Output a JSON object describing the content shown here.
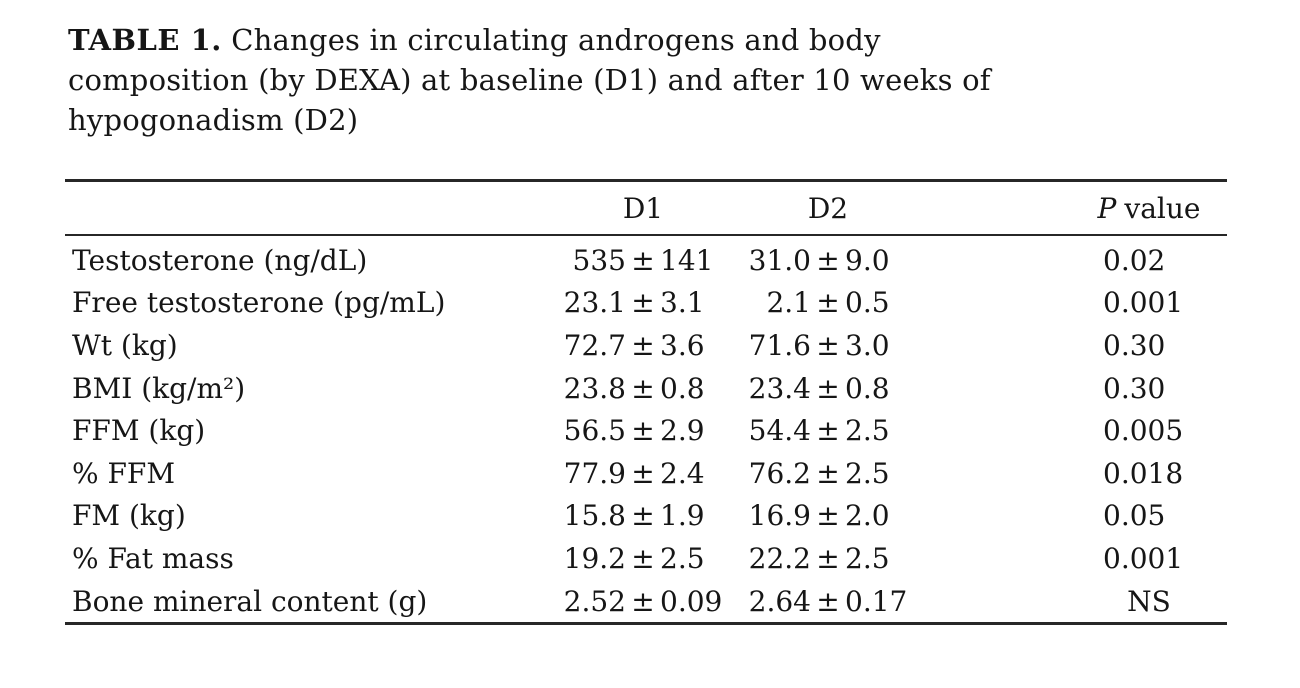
{
  "caption": {
    "label": "TABLE 1.",
    "line1_rest": " Changes in circulating androgens and body",
    "line2": "composition (by DEXA) at baseline (D1) and after 10 weeks of",
    "line3": "hypogonadism (D2)"
  },
  "table": {
    "pm_symbol": "±",
    "header": {
      "d1": "D1",
      "d2": "D2",
      "p_italic": "P",
      "p_rest": "value"
    },
    "rows": [
      {
        "label": "Testosterone (ng/dL)",
        "d1_mean": "535",
        "d1_sd": "141",
        "d2_mean": "31.0",
        "d2_sd": "9.0",
        "p": "0.02"
      },
      {
        "label": "Free testosterone (pg/mL)",
        "d1_mean": "23.1",
        "d1_sd": "3.1",
        "d2_mean": "2.1",
        "d2_sd": "0.5",
        "p": "0.001"
      },
      {
        "label": "Wt (kg)",
        "d1_mean": "72.7",
        "d1_sd": "3.6",
        "d2_mean": "71.6",
        "d2_sd": "3.0",
        "p": "0.30"
      },
      {
        "label": "BMI (kg/m²)",
        "d1_mean": "23.8",
        "d1_sd": "0.8",
        "d2_mean": "23.4",
        "d2_sd": "0.8",
        "p": "0.30"
      },
      {
        "label": "FFM (kg)",
        "d1_mean": "56.5",
        "d1_sd": "2.9",
        "d2_mean": "54.4",
        "d2_sd": "2.5",
        "p": "0.005"
      },
      {
        "label": "% FFM",
        "d1_mean": "77.9",
        "d1_sd": "2.4",
        "d2_mean": "76.2",
        "d2_sd": "2.5",
        "p": "0.018"
      },
      {
        "label": "FM (kg)",
        "d1_mean": "15.8",
        "d1_sd": "1.9",
        "d2_mean": "16.9",
        "d2_sd": "2.0",
        "p": "0.05"
      },
      {
        "label": "% Fat mass",
        "d1_mean": "19.2",
        "d1_sd": "2.5",
        "d2_mean": "22.2",
        "d2_sd": "2.5",
        "p": "0.001"
      },
      {
        "label": "Bone mineral content (g)",
        "d1_mean": "2.52",
        "d1_sd": "0.09",
        "d2_mean": "2.64",
        "d2_sd": "0.17",
        "p": "NS"
      }
    ]
  },
  "colors": {
    "text": "#161616",
    "rule": "#272727",
    "background": "#ffffff"
  }
}
